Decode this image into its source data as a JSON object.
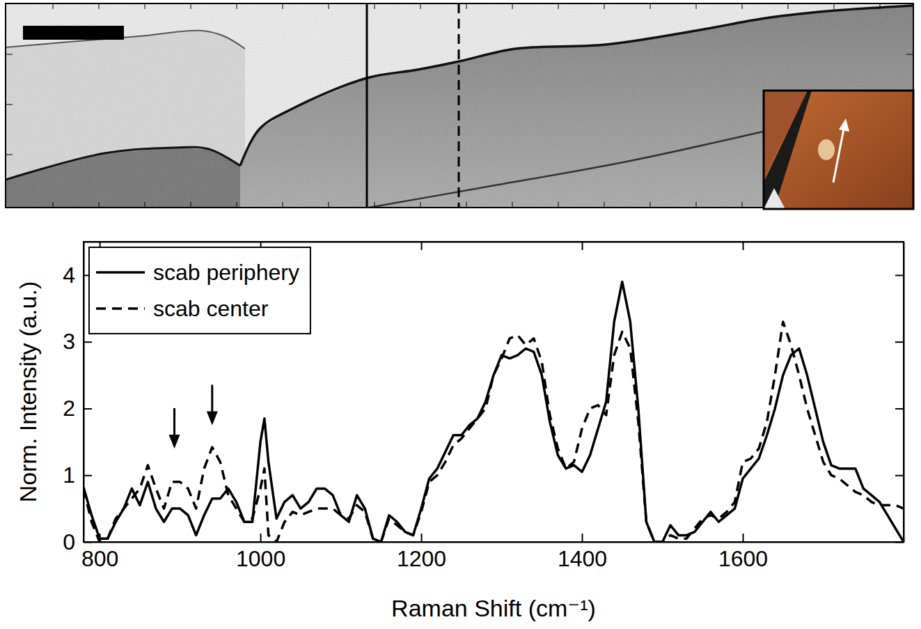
{
  "chart_data": {
    "type": "line",
    "x_label": "Raman Shift (cm⁻¹)",
    "y_label": "Norm. Intensity (a.u.)",
    "xlim": [
      780,
      1800
    ],
    "ylim": [
      0,
      4.5
    ],
    "xticks": [
      800,
      1000,
      1200,
      1400,
      1600
    ],
    "yticks": [
      0,
      1,
      2,
      3,
      4
    ],
    "legend": "upper left",
    "x": [
      780,
      790,
      800,
      810,
      820,
      830,
      840,
      850,
      860,
      870,
      880,
      890,
      900,
      910,
      920,
      930,
      940,
      950,
      960,
      970,
      980,
      990,
      1000,
      1005,
      1010,
      1020,
      1030,
      1040,
      1050,
      1060,
      1070,
      1080,
      1090,
      1100,
      1110,
      1120,
      1130,
      1140,
      1150,
      1160,
      1170,
      1180,
      1190,
      1200,
      1210,
      1220,
      1230,
      1240,
      1250,
      1260,
      1270,
      1280,
      1290,
      1300,
      1310,
      1320,
      1330,
      1340,
      1350,
      1360,
      1370,
      1380,
      1390,
      1400,
      1410,
      1420,
      1430,
      1440,
      1450,
      1460,
      1470,
      1480,
      1490,
      1500,
      1510,
      1520,
      1530,
      1540,
      1550,
      1560,
      1570,
      1580,
      1590,
      1600,
      1610,
      1620,
      1630,
      1640,
      1650,
      1660,
      1670,
      1680,
      1690,
      1700,
      1710,
      1720,
      1730,
      1740,
      1750,
      1760,
      1770,
      1780,
      1790,
      1800
    ],
    "series": [
      {
        "name": "scab periphery",
        "color": "#000000",
        "line_style": "solid",
        "values": [
          0.82,
          0.4,
          0.05,
          0.05,
          0.3,
          0.5,
          0.8,
          0.55,
          0.9,
          0.5,
          0.3,
          0.5,
          0.5,
          0.4,
          0.1,
          0.4,
          0.65,
          0.65,
          0.8,
          0.6,
          0.3,
          0.3,
          1.5,
          1.85,
          1.2,
          0.35,
          0.6,
          0.7,
          0.5,
          0.6,
          0.8,
          0.8,
          0.7,
          0.4,
          0.3,
          0.7,
          0.5,
          0.05,
          0.0,
          0.4,
          0.3,
          0.15,
          0.1,
          0.5,
          0.95,
          1.1,
          1.35,
          1.6,
          1.6,
          1.75,
          1.85,
          2.1,
          2.5,
          2.8,
          2.75,
          2.8,
          2.9,
          2.85,
          2.5,
          1.8,
          1.3,
          1.1,
          1.15,
          1.05,
          1.3,
          1.7,
          2.1,
          3.3,
          3.9,
          3.3,
          2.0,
          0.3,
          0.0,
          0.0,
          0.25,
          0.1,
          0.1,
          0.15,
          0.3,
          0.45,
          0.3,
          0.4,
          0.5,
          0.95,
          1.1,
          1.25,
          1.6,
          2.0,
          2.5,
          2.8,
          2.9,
          2.5,
          2.0,
          1.5,
          1.15,
          1.1,
          1.1,
          1.1,
          0.8,
          0.7,
          0.6,
          0.4,
          0.2,
          0.0
        ]
      },
      {
        "name": "scab center",
        "color": "#000000",
        "line_style": "dashed",
        "values": [
          0.8,
          0.3,
          0.0,
          0.05,
          0.35,
          0.5,
          0.65,
          0.8,
          1.15,
          0.8,
          0.5,
          0.9,
          0.9,
          0.8,
          0.5,
          1.1,
          1.42,
          1.2,
          0.7,
          0.5,
          0.3,
          0.35,
          0.8,
          1.1,
          0.1,
          0.0,
          0.3,
          0.45,
          0.4,
          0.45,
          0.5,
          0.5,
          0.5,
          0.4,
          0.35,
          0.55,
          0.45,
          0.05,
          0.0,
          0.35,
          0.25,
          0.15,
          0.1,
          0.45,
          0.9,
          1.0,
          1.2,
          1.45,
          1.55,
          1.7,
          1.85,
          2.0,
          2.5,
          2.75,
          3.05,
          3.1,
          2.95,
          3.05,
          2.7,
          1.9,
          1.4,
          1.1,
          1.2,
          1.7,
          2.0,
          2.05,
          1.9,
          2.8,
          3.15,
          2.9,
          1.8,
          0.3,
          0.0,
          0.0,
          0.1,
          0.05,
          0.05,
          0.2,
          0.35,
          0.4,
          0.35,
          0.45,
          0.6,
          1.2,
          1.25,
          1.4,
          1.8,
          2.5,
          3.3,
          2.95,
          2.5,
          2.0,
          1.6,
          1.2,
          1.0,
          0.95,
          0.85,
          0.75,
          0.7,
          0.6,
          0.55,
          0.55,
          0.55,
          0.5
        ]
      }
    ],
    "arrows": [
      {
        "x": 893,
        "y": 1.4
      },
      {
        "x": 940,
        "y": 1.75
      }
    ]
  }
}
